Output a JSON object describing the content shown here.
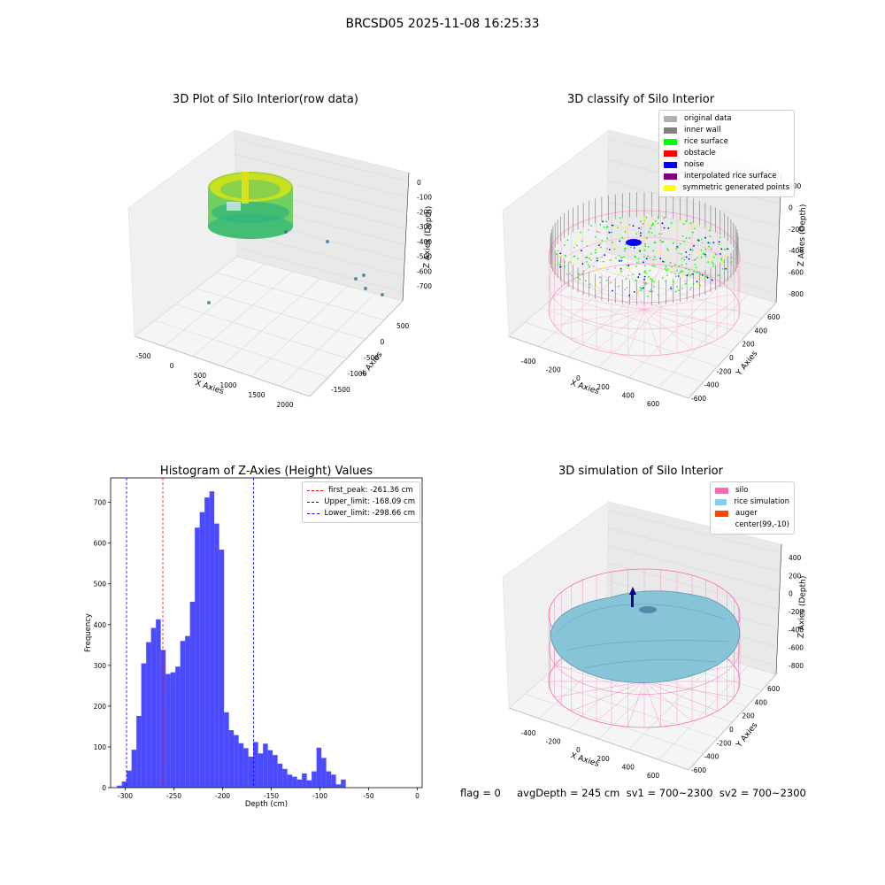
{
  "figure_title": "BRCSD05 2025-11-08 16:25:33",
  "footer": "flag = 0     avgDepth = 245 cm  sv1 = 700~2300  sv2 = 700~2300",
  "chart_data": [
    {
      "type": "scatter",
      "title": "3D Plot of Silo Interior(row data)",
      "xlabel": "X Axies",
      "ylabel": "Y Axies",
      "zlabel": "Z Axies (Depth)",
      "x_ticks": [
        "-500",
        "0",
        "500",
        "1000",
        "1500",
        "2000"
      ],
      "y_ticks": [
        "500",
        "0",
        "-500",
        "-1000",
        "-1500"
      ],
      "z_ticks": [
        "0",
        "-100",
        "-200",
        "-300",
        "-400",
        "-500",
        "-600",
        "-700"
      ],
      "colormap": "viridis",
      "colors": {
        "surface_low": "#3fbf7f",
        "surface_high": "#d8e219",
        "outlier": "#2c6f8e"
      }
    },
    {
      "type": "scatter",
      "title": "3D classify of Silo Interior",
      "xlabel": "X Axies",
      "ylabel": "Y Axies",
      "zlabel": "Z Axies (Depth)",
      "x_ticks": [
        "-400",
        "-200",
        "0",
        "200",
        "400",
        "600"
      ],
      "y_ticks": [
        "600",
        "400",
        "200",
        "0",
        "-200",
        "-400",
        "-600"
      ],
      "z_ticks": [
        "200",
        "0",
        "-200",
        "-400",
        "-600",
        "-800"
      ],
      "legend_position": "top-right",
      "legend": [
        {
          "label": "original data",
          "color": "#b0b0b0"
        },
        {
          "label": "inner wall",
          "color": "#808080"
        },
        {
          "label": "rice surface",
          "color": "#00ff00"
        },
        {
          "label": "obstacle",
          "color": "#ff0000"
        },
        {
          "label": "noise",
          "color": "#0000ff"
        },
        {
          "label": "interpolated rice surface",
          "color": "#800080"
        },
        {
          "label": "symmetric generated points",
          "color": "#ffff00"
        }
      ],
      "colors": {
        "silo_wire": "#ff9ccc"
      }
    },
    {
      "type": "bar",
      "title": "Histogram of Z-Axies (Height) Values",
      "xlabel": "Depth (cm)",
      "ylabel": "Frequency",
      "xlim": [
        -315,
        5
      ],
      "ylim": [
        0,
        760
      ],
      "x_ticks": [
        -300,
        -250,
        -200,
        -150,
        -100,
        -50,
        0
      ],
      "y_ticks": [
        0,
        100,
        200,
        300,
        400,
        500,
        600,
        700
      ],
      "bin_start": -308.5,
      "bin_width": 5,
      "values": [
        5,
        15,
        42,
        93,
        176,
        305,
        357,
        392,
        413,
        338,
        279,
        283,
        297,
        360,
        372,
        456,
        638,
        676,
        712,
        727,
        648,
        584,
        185,
        141,
        129,
        109,
        97,
        76,
        112,
        84,
        108,
        92,
        80,
        59,
        46,
        32,
        27,
        20,
        35,
        18,
        40,
        98,
        73,
        40,
        32,
        8,
        20
      ],
      "bar_color": "#0000ff",
      "vlines": [
        {
          "label": "first_peak: -261.36 cm",
          "x": -261.36,
          "color": "#ff0000"
        },
        {
          "label": "Upper_limit: -168.09 cm",
          "x": -168.09,
          "color": "#0000ff"
        },
        {
          "label": "Lower_limit: -298.66 cm",
          "x": -298.66,
          "color": "#0000ff"
        }
      ],
      "legend_position": "top-right"
    },
    {
      "type": "scatter",
      "title": "3D simulation of Silo Interior",
      "xlabel": "X Axies",
      "ylabel": "Y Axies",
      "zlabel": "Z Axies (Depth)",
      "x_ticks": [
        "-400",
        "-200",
        "0",
        "200",
        "400",
        "600"
      ],
      "y_ticks": [
        "600",
        "400",
        "200",
        "0",
        "-200",
        "-400",
        "-600"
      ],
      "z_ticks": [
        "400",
        "200",
        "0",
        "-200",
        "-400",
        "-600",
        "-800"
      ],
      "legend_position": "top-right",
      "legend": [
        {
          "label": "silo",
          "color": "#ff69b4"
        },
        {
          "label": "rice simulation",
          "color": "#87ceeb"
        },
        {
          "label": "auger",
          "color": "#ff4500"
        },
        {
          "label": "center(99,-10)",
          "color": ""
        }
      ]
    }
  ]
}
